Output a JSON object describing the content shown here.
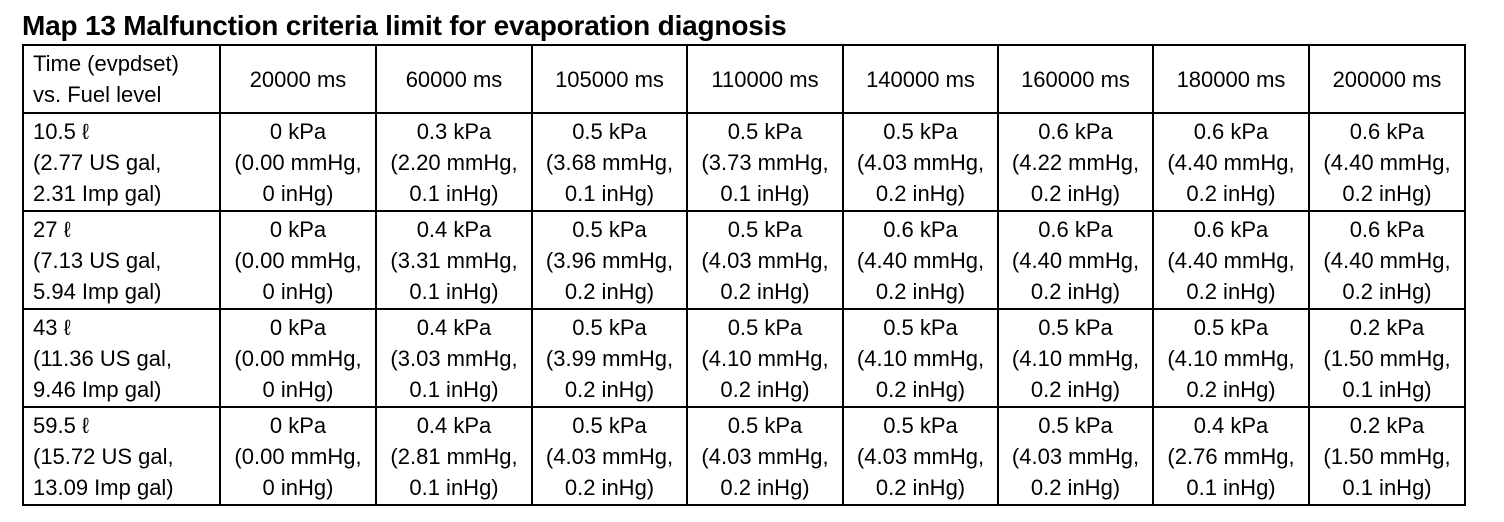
{
  "title": "Map 13 Malfunction criteria limit for evaporation diagnosis",
  "table": {
    "corner": [
      "Time (evpdset)",
      "vs. Fuel level"
    ],
    "columns": [
      "20000 ms",
      "60000 ms",
      "105000 ms",
      "110000 ms",
      "140000 ms",
      "160000 ms",
      "180000 ms",
      "200000 ms"
    ],
    "rows": [
      {
        "label": [
          "10.5  ℓ",
          "(2.77 US gal,",
          "2.31 Imp gal)"
        ],
        "cells": [
          [
            "0 kPa",
            "(0.00 mmHg,",
            "0 inHg)"
          ],
          [
            "0.3 kPa",
            "(2.20 mmHg,",
            "0.1 inHg)"
          ],
          [
            "0.5 kPa",
            "(3.68 mmHg,",
            "0.1 inHg)"
          ],
          [
            "0.5 kPa",
            "(3.73 mmHg,",
            "0.1 inHg)"
          ],
          [
            "0.5 kPa",
            "(4.03 mmHg,",
            "0.2 inHg)"
          ],
          [
            "0.6 kPa",
            "(4.22 mmHg,",
            "0.2 inHg)"
          ],
          [
            "0.6 kPa",
            "(4.40 mmHg,",
            "0.2 inHg)"
          ],
          [
            "0.6 kPa",
            "(4.40 mmHg,",
            "0.2 inHg)"
          ]
        ]
      },
      {
        "label": [
          "27  ℓ",
          "(7.13 US gal,",
          "5.94 Imp gal)"
        ],
        "cells": [
          [
            "0 kPa",
            "(0.00 mmHg,",
            "0 inHg)"
          ],
          [
            "0.4 kPa",
            "(3.31 mmHg,",
            "0.1 inHg)"
          ],
          [
            "0.5 kPa",
            "(3.96 mmHg,",
            "0.2 inHg)"
          ],
          [
            "0.5 kPa",
            "(4.03 mmHg,",
            "0.2 inHg)"
          ],
          [
            "0.6 kPa",
            "(4.40 mmHg,",
            "0.2 inHg)"
          ],
          [
            "0.6 kPa",
            "(4.40 mmHg,",
            "0.2 inHg)"
          ],
          [
            "0.6 kPa",
            "(4.40 mmHg,",
            "0.2 inHg)"
          ],
          [
            "0.6 kPa",
            "(4.40 mmHg,",
            "0.2 inHg)"
          ]
        ]
      },
      {
        "label": [
          "43  ℓ",
          "(11.36 US gal,",
          "9.46 Imp gal)"
        ],
        "cells": [
          [
            "0 kPa",
            "(0.00 mmHg,",
            "0 inHg)"
          ],
          [
            "0.4 kPa",
            "(3.03 mmHg,",
            "0.1 inHg)"
          ],
          [
            "0.5 kPa",
            "(3.99 mmHg,",
            "0.2 inHg)"
          ],
          [
            "0.5 kPa",
            "(4.10 mmHg,",
            "0.2 inHg)"
          ],
          [
            "0.5 kPa",
            "(4.10 mmHg,",
            "0.2 inHg)"
          ],
          [
            "0.5 kPa",
            "(4.10 mmHg,",
            "0.2 inHg)"
          ],
          [
            "0.5 kPa",
            "(4.10 mmHg,",
            "0.2 inHg)"
          ],
          [
            "0.2 kPa",
            "(1.50 mmHg,",
            "0.1 inHg)"
          ]
        ]
      },
      {
        "label": [
          "59.5  ℓ",
          "(15.72 US gal,",
          "13.09 Imp gal)"
        ],
        "cells": [
          [
            "0 kPa",
            "(0.00 mmHg,",
            "0 inHg)"
          ],
          [
            "0.4 kPa",
            "(2.81 mmHg,",
            "0.1 inHg)"
          ],
          [
            "0.5 kPa",
            "(4.03 mmHg,",
            "0.2 inHg)"
          ],
          [
            "0.5 kPa",
            "(4.03 mmHg,",
            "0.2 inHg)"
          ],
          [
            "0.5 kPa",
            "(4.03 mmHg,",
            "0.2 inHg)"
          ],
          [
            "0.5 kPa",
            "(4.03 mmHg,",
            "0.2 inHg)"
          ],
          [
            "0.4 kPa",
            "(2.76 mmHg,",
            "0.1 inHg)"
          ],
          [
            "0.2 kPa",
            "(1.50 mmHg,",
            "0.1 inHg)"
          ]
        ]
      }
    ]
  }
}
